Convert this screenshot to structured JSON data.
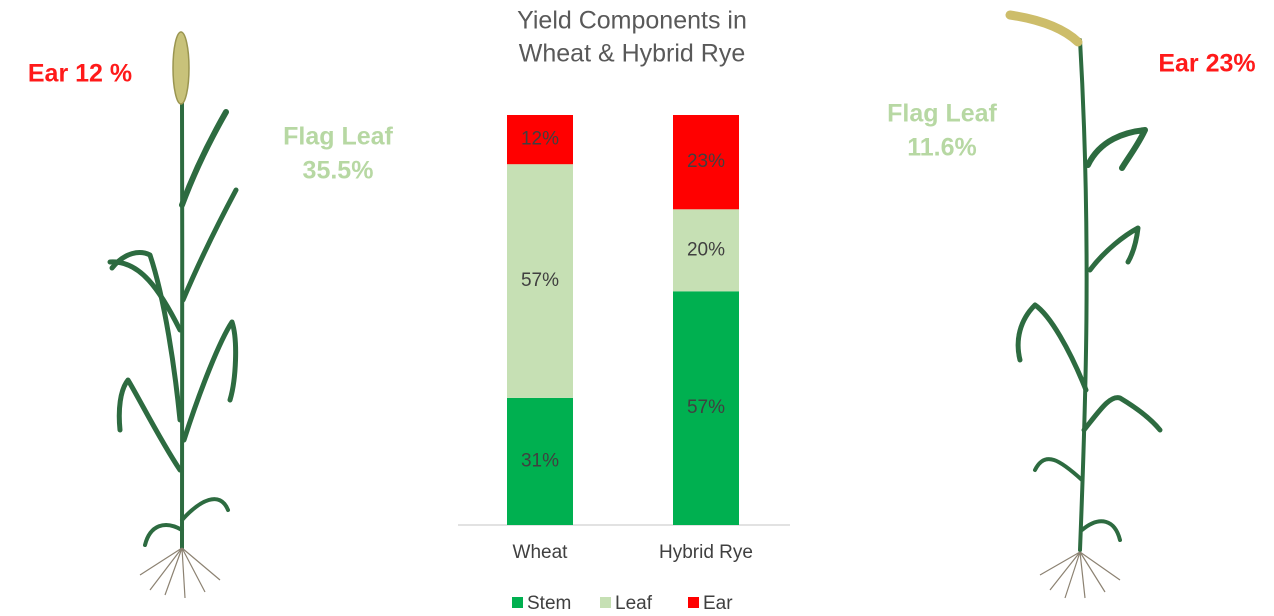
{
  "chart_data": {
    "type": "stacked-bar",
    "title": [
      "Yield Components in",
      "Wheat & Hybrid Rye"
    ],
    "categories": [
      "Wheat",
      "Hybrid Rye"
    ],
    "series": [
      {
        "name": "Stem",
        "color": "#00b050",
        "values": [
          31,
          57
        ],
        "value_labels": [
          "31%",
          "57%"
        ]
      },
      {
        "name": "Leaf",
        "color": "#c6e0b4",
        "values": [
          57,
          20
        ],
        "value_labels": [
          "57%",
          "20%"
        ]
      },
      {
        "name": "Ear",
        "color": "#ff0000",
        "values": [
          12,
          23
        ],
        "value_labels": [
          "12%",
          "23%"
        ]
      }
    ],
    "ylim": [
      0,
      100
    ],
    "annotations": [
      {
        "lines": [
          "Ear 12 %"
        ]
      },
      {
        "lines": [
          "Flag Leaf",
          "35.5%"
        ]
      },
      {
        "lines": [
          "Flag Leaf",
          "11.6%"
        ]
      },
      {
        "lines": [
          "Ear 23%"
        ]
      }
    ]
  }
}
